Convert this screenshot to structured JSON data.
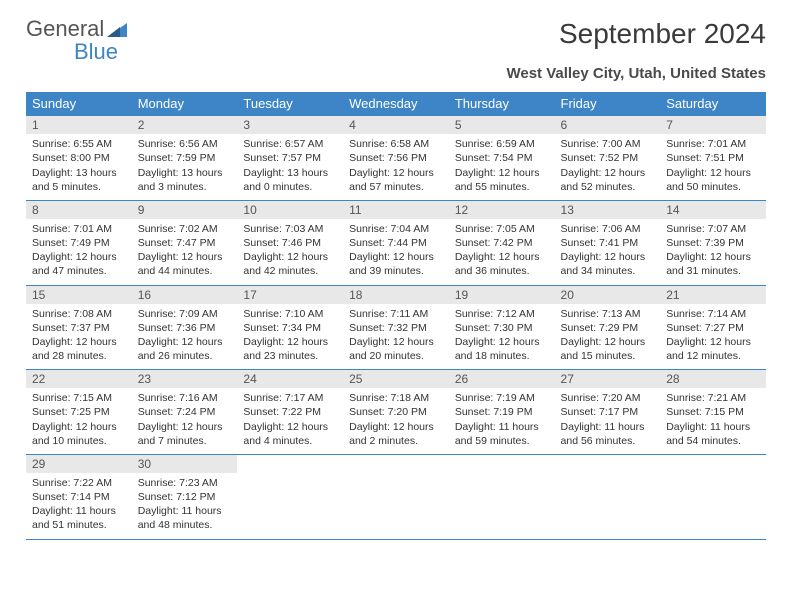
{
  "logo": {
    "line1": "General",
    "line2": "Blue"
  },
  "title": "September 2024",
  "location": "West Valley City, Utah, United States",
  "colors": {
    "header_bg": "#3d85c6",
    "header_fg": "#ffffff",
    "daynum_bg": "#e8e8e8",
    "border": "#3d85c6",
    "text": "#333333",
    "background": "#ffffff"
  },
  "weekdays": [
    "Sunday",
    "Monday",
    "Tuesday",
    "Wednesday",
    "Thursday",
    "Friday",
    "Saturday"
  ],
  "weeks": [
    [
      {
        "num": "1",
        "sunrise": "6:55 AM",
        "sunset": "8:00 PM",
        "daylight": "13 hours and 5 minutes."
      },
      {
        "num": "2",
        "sunrise": "6:56 AM",
        "sunset": "7:59 PM",
        "daylight": "13 hours and 3 minutes."
      },
      {
        "num": "3",
        "sunrise": "6:57 AM",
        "sunset": "7:57 PM",
        "daylight": "13 hours and 0 minutes."
      },
      {
        "num": "4",
        "sunrise": "6:58 AM",
        "sunset": "7:56 PM",
        "daylight": "12 hours and 57 minutes."
      },
      {
        "num": "5",
        "sunrise": "6:59 AM",
        "sunset": "7:54 PM",
        "daylight": "12 hours and 55 minutes."
      },
      {
        "num": "6",
        "sunrise": "7:00 AM",
        "sunset": "7:52 PM",
        "daylight": "12 hours and 52 minutes."
      },
      {
        "num": "7",
        "sunrise": "7:01 AM",
        "sunset": "7:51 PM",
        "daylight": "12 hours and 50 minutes."
      }
    ],
    [
      {
        "num": "8",
        "sunrise": "7:01 AM",
        "sunset": "7:49 PM",
        "daylight": "12 hours and 47 minutes."
      },
      {
        "num": "9",
        "sunrise": "7:02 AM",
        "sunset": "7:47 PM",
        "daylight": "12 hours and 44 minutes."
      },
      {
        "num": "10",
        "sunrise": "7:03 AM",
        "sunset": "7:46 PM",
        "daylight": "12 hours and 42 minutes."
      },
      {
        "num": "11",
        "sunrise": "7:04 AM",
        "sunset": "7:44 PM",
        "daylight": "12 hours and 39 minutes."
      },
      {
        "num": "12",
        "sunrise": "7:05 AM",
        "sunset": "7:42 PM",
        "daylight": "12 hours and 36 minutes."
      },
      {
        "num": "13",
        "sunrise": "7:06 AM",
        "sunset": "7:41 PM",
        "daylight": "12 hours and 34 minutes."
      },
      {
        "num": "14",
        "sunrise": "7:07 AM",
        "sunset": "7:39 PM",
        "daylight": "12 hours and 31 minutes."
      }
    ],
    [
      {
        "num": "15",
        "sunrise": "7:08 AM",
        "sunset": "7:37 PM",
        "daylight": "12 hours and 28 minutes."
      },
      {
        "num": "16",
        "sunrise": "7:09 AM",
        "sunset": "7:36 PM",
        "daylight": "12 hours and 26 minutes."
      },
      {
        "num": "17",
        "sunrise": "7:10 AM",
        "sunset": "7:34 PM",
        "daylight": "12 hours and 23 minutes."
      },
      {
        "num": "18",
        "sunrise": "7:11 AM",
        "sunset": "7:32 PM",
        "daylight": "12 hours and 20 minutes."
      },
      {
        "num": "19",
        "sunrise": "7:12 AM",
        "sunset": "7:30 PM",
        "daylight": "12 hours and 18 minutes."
      },
      {
        "num": "20",
        "sunrise": "7:13 AM",
        "sunset": "7:29 PM",
        "daylight": "12 hours and 15 minutes."
      },
      {
        "num": "21",
        "sunrise": "7:14 AM",
        "sunset": "7:27 PM",
        "daylight": "12 hours and 12 minutes."
      }
    ],
    [
      {
        "num": "22",
        "sunrise": "7:15 AM",
        "sunset": "7:25 PM",
        "daylight": "12 hours and 10 minutes."
      },
      {
        "num": "23",
        "sunrise": "7:16 AM",
        "sunset": "7:24 PM",
        "daylight": "12 hours and 7 minutes."
      },
      {
        "num": "24",
        "sunrise": "7:17 AM",
        "sunset": "7:22 PM",
        "daylight": "12 hours and 4 minutes."
      },
      {
        "num": "25",
        "sunrise": "7:18 AM",
        "sunset": "7:20 PM",
        "daylight": "12 hours and 2 minutes."
      },
      {
        "num": "26",
        "sunrise": "7:19 AM",
        "sunset": "7:19 PM",
        "daylight": "11 hours and 59 minutes."
      },
      {
        "num": "27",
        "sunrise": "7:20 AM",
        "sunset": "7:17 PM",
        "daylight": "11 hours and 56 minutes."
      },
      {
        "num": "28",
        "sunrise": "7:21 AM",
        "sunset": "7:15 PM",
        "daylight": "11 hours and 54 minutes."
      }
    ],
    [
      {
        "num": "29",
        "sunrise": "7:22 AM",
        "sunset": "7:14 PM",
        "daylight": "11 hours and 51 minutes."
      },
      {
        "num": "30",
        "sunrise": "7:23 AM",
        "sunset": "7:12 PM",
        "daylight": "11 hours and 48 minutes."
      },
      null,
      null,
      null,
      null,
      null
    ]
  ],
  "labels": {
    "sunrise": "Sunrise: ",
    "sunset": "Sunset: ",
    "daylight": "Daylight: "
  }
}
